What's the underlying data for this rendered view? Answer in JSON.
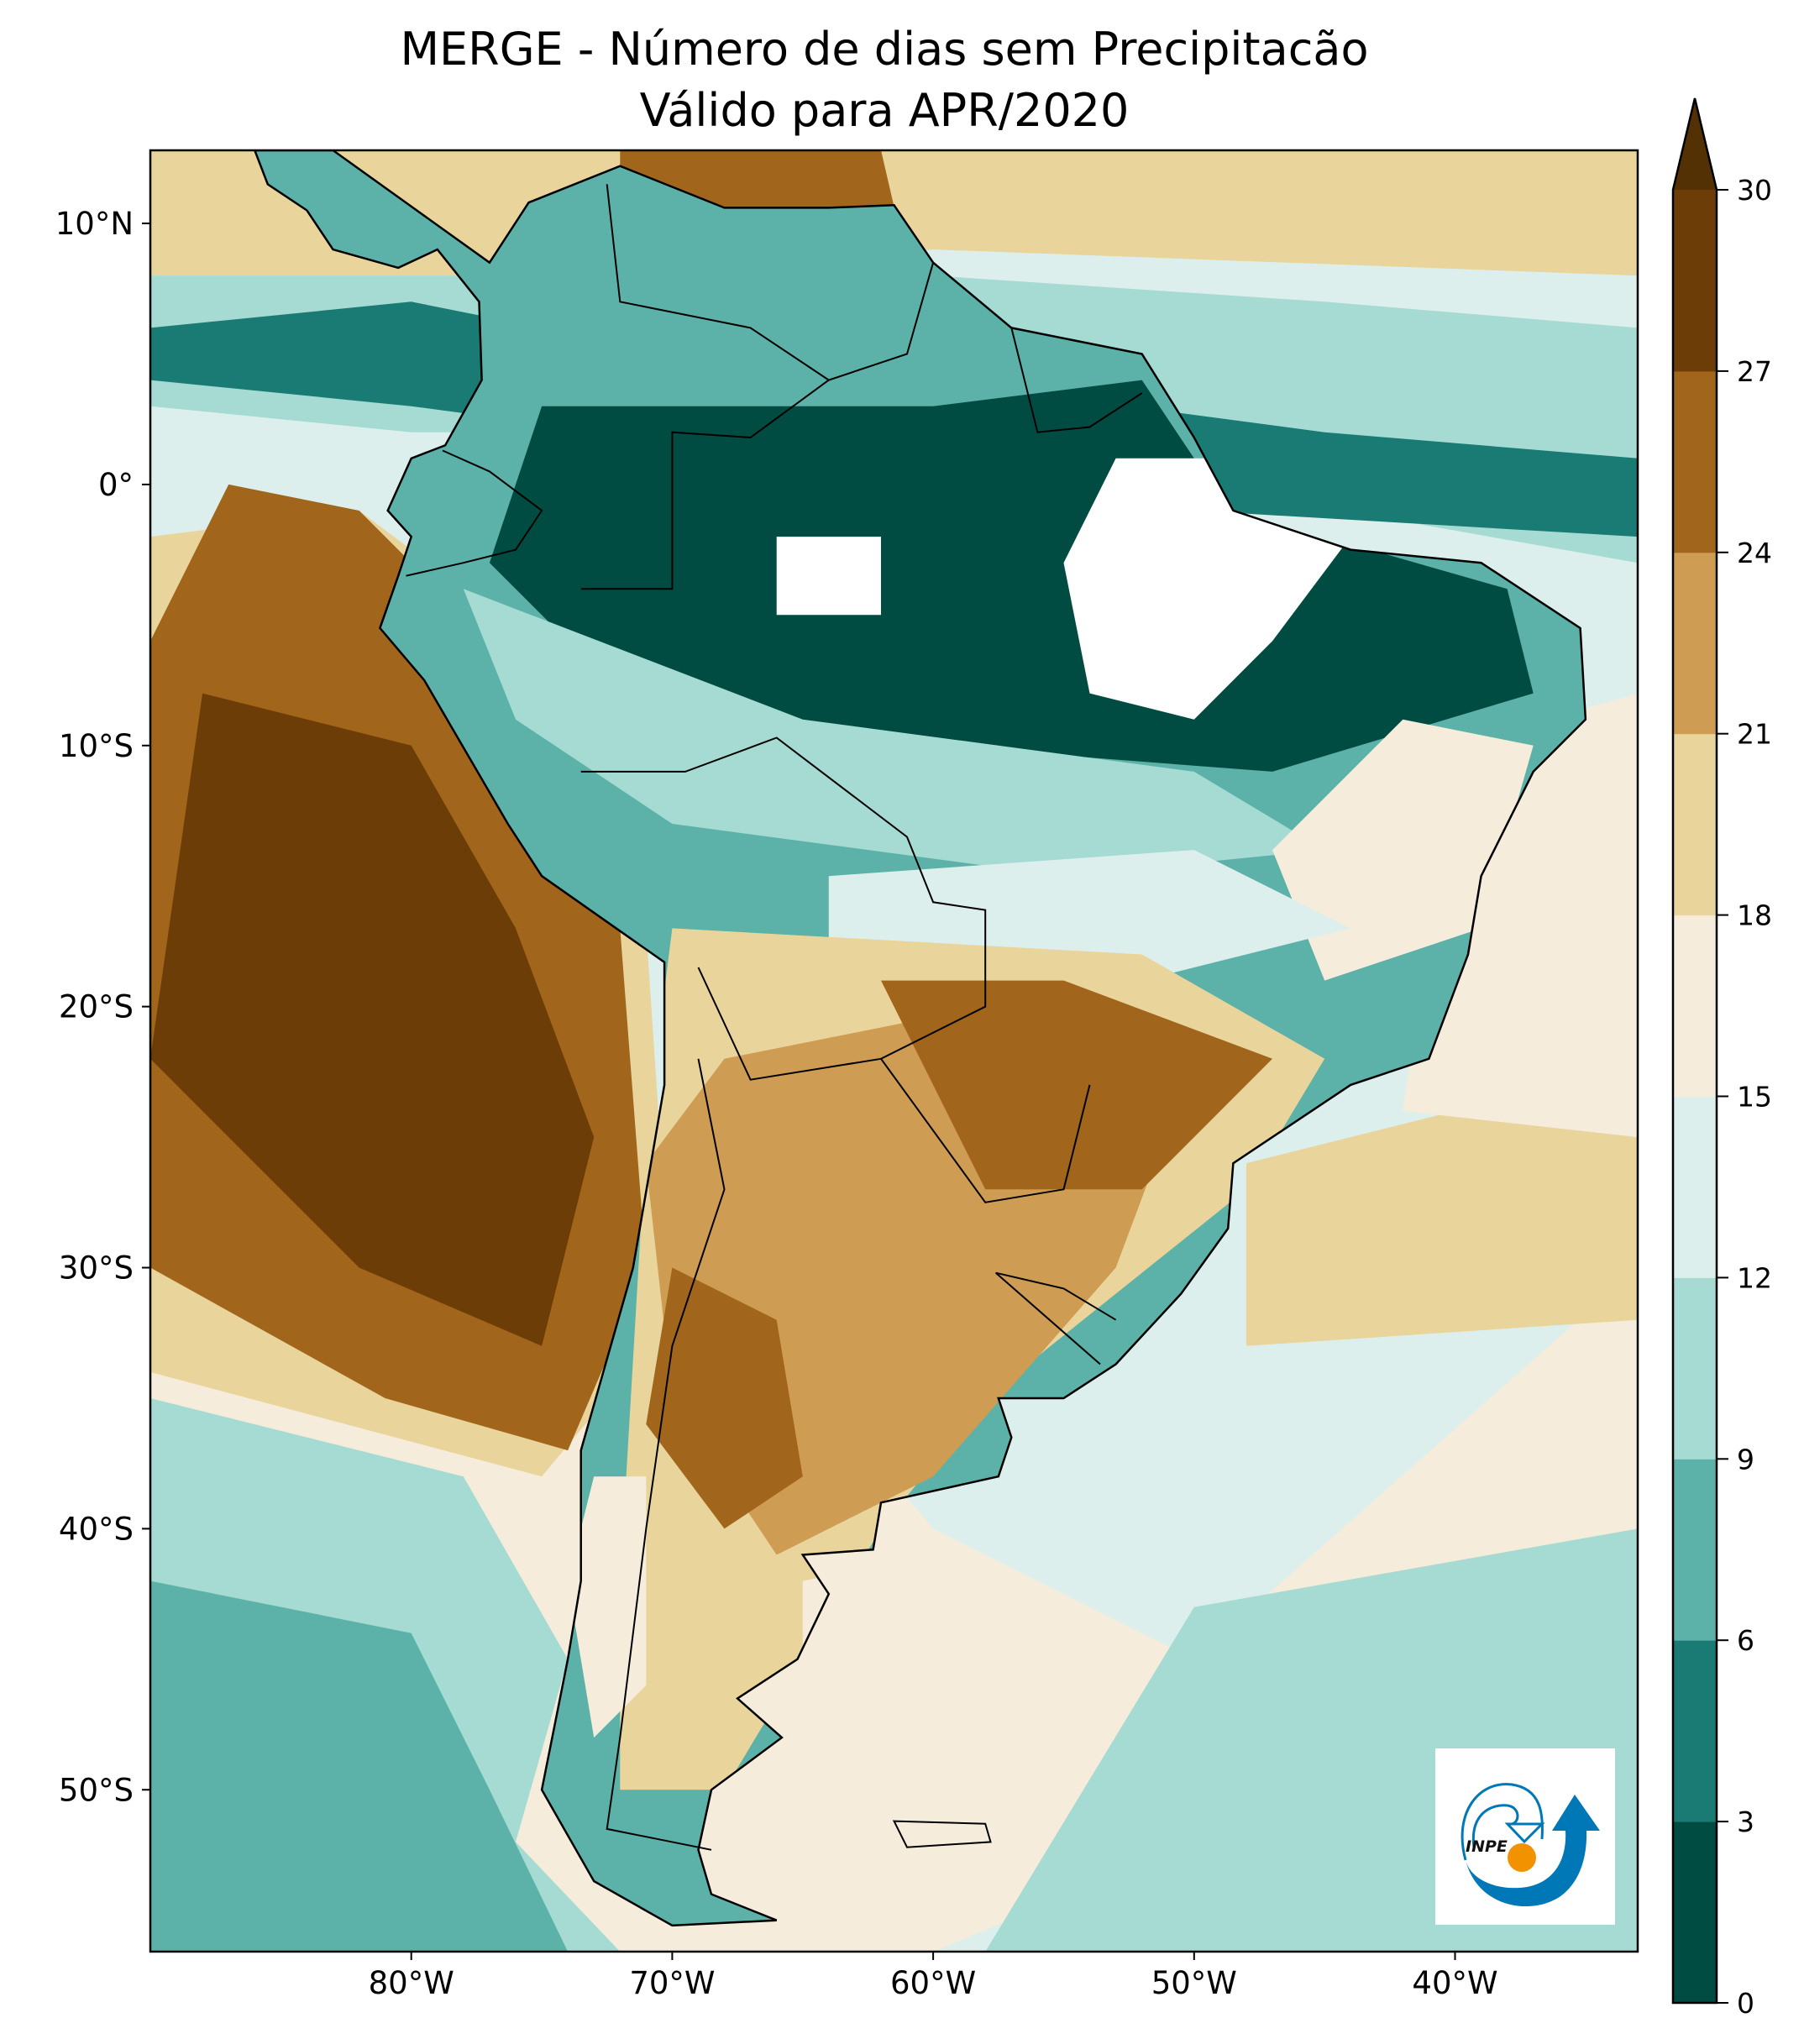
{
  "title": {
    "line1": "MERGE - Número de dias sem Precipitacão",
    "line2": "Válido para APR/2020"
  },
  "axes": {
    "lon_range": [
      -90,
      -33
    ],
    "lat_range": [
      -56.2,
      12.8
    ],
    "x_ticks": [
      {
        "value": -80,
        "label": "80°W"
      },
      {
        "value": -70,
        "label": "70°W"
      },
      {
        "value": -60,
        "label": "60°W"
      },
      {
        "value": -50,
        "label": "50°W"
      },
      {
        "value": -40,
        "label": "40°W"
      }
    ],
    "y_ticks": [
      {
        "value": 10,
        "label": "10°N"
      },
      {
        "value": 0,
        "label": "0°"
      },
      {
        "value": -10,
        "label": "10°S"
      },
      {
        "value": -20,
        "label": "20°S"
      },
      {
        "value": -30,
        "label": "30°S"
      },
      {
        "value": -40,
        "label": "40°S"
      },
      {
        "value": -50,
        "label": "50°S"
      }
    ]
  },
  "colorbar": {
    "levels": [
      0,
      3,
      6,
      9,
      12,
      15,
      18,
      21,
      24,
      27,
      30
    ],
    "labels": [
      "0",
      "3",
      "6",
      "9",
      "12",
      "15",
      "18",
      "21",
      "24",
      "27",
      "30"
    ],
    "colors": [
      "#014c42",
      "#1a7b74",
      "#5cb2a8",
      "#a5dbd2",
      "#ddefec",
      "#f5ecdb",
      "#e9d49c",
      "#ce9c52",
      "#a1651b",
      "#6c3d07"
    ],
    "extend_color": "#543005",
    "extend": "max"
  },
  "logo": {
    "text": "INPE",
    "blue": "#0077b6",
    "orange": "#f39200"
  }
}
